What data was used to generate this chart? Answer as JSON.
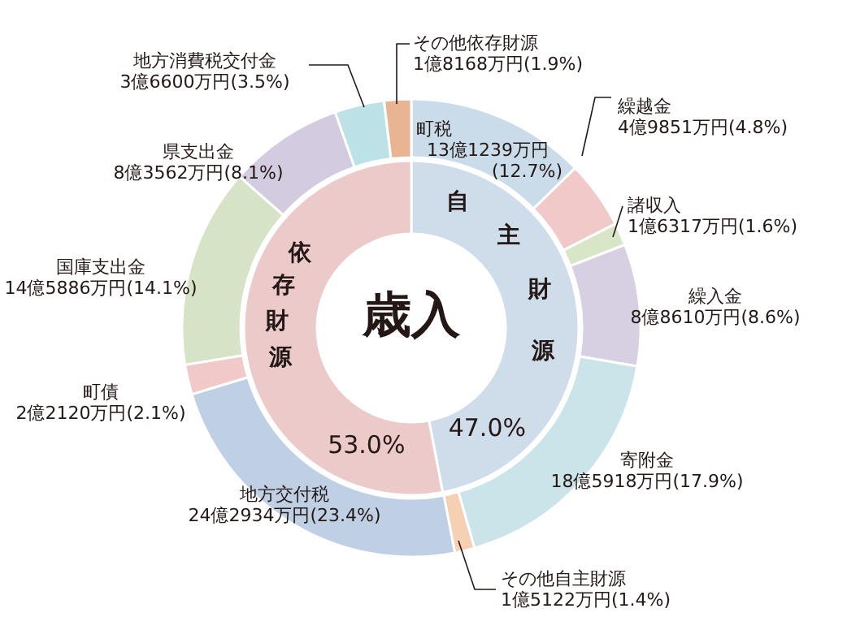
{
  "chart_data": [
    {
      "type": "donut",
      "title": "歳入",
      "categories": [
        "自主財源",
        "依存財源"
      ],
      "values": [
        47.0,
        53.0
      ],
      "colors": [
        "#cfdcea",
        "#eccaca"
      ],
      "value_labels": [
        "47.0%",
        "53.0%"
      ]
    },
    {
      "type": "donut",
      "categories": [
        "町税",
        "繰越金",
        "諸収入",
        "繰入金",
        "寄附金",
        "その他自主財源",
        "地方交付税",
        "町債",
        "国庫支出金",
        "県支出金",
        "地方消費税交付金",
        "その他依存財源"
      ],
      "values": [
        12.7,
        4.8,
        1.6,
        8.6,
        17.9,
        1.4,
        23.4,
        2.1,
        14.1,
        8.1,
        3.5,
        1.9
      ],
      "colors": [
        "#cadcea",
        "#f1c9c9",
        "#d6e6c6",
        "#d7cfe2",
        "#cbe4ea",
        "#f6d0b3",
        "#bfcfe4",
        "#f1c9c9",
        "#d7e3c6",
        "#d3cbe0",
        "#bce1e6",
        "#e8b491"
      ],
      "value_labels": [
        "13億1239万円\n(12.7%)",
        "4億9851万円(4.8%)",
        "1億6317万円(1.6%)",
        "8億8610万円(8.6%)",
        "18億5918万円(17.9%)",
        "1億5122万円(1.4%)",
        "24億2934万円(23.4%)",
        "2億2120万円(2.1%)",
        "14億5886万円(14.1%)",
        "8億3562万円(8.1%)",
        "3億6600万円(3.5%)",
        "1億8168万円(1.9%)"
      ]
    }
  ]
}
